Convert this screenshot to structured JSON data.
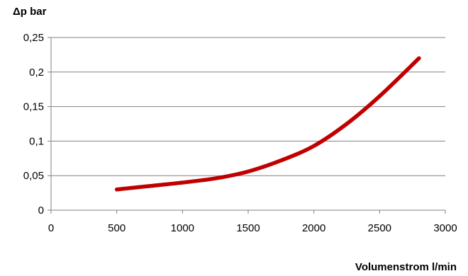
{
  "chart_data": {
    "type": "line",
    "ylabel": "Δp  bar",
    "xlabel": "Volumenstrom l/min",
    "xlim": [
      0,
      3000
    ],
    "ylim": [
      0,
      0.25
    ],
    "x_ticks": [
      0,
      500,
      1000,
      1500,
      2000,
      2500,
      3000
    ],
    "x_tick_labels": [
      "0",
      "500",
      "1000",
      "1500",
      "2000",
      "2500",
      "3000"
    ],
    "y_ticks": [
      0,
      0.05,
      0.1,
      0.15,
      0.2,
      0.25
    ],
    "y_tick_labels": [
      "0",
      "0,05",
      "0,1",
      "0,15",
      "0,2",
      "0,25"
    ],
    "grid": "horizontal",
    "colors": {
      "series": "#C00000",
      "grid": "#808080",
      "axis": "#808080"
    },
    "series": [
      {
        "x": [
          500,
          750,
          1000,
          1250,
          1500,
          1750,
          2000,
          2250,
          2500,
          2800
        ],
        "values": [
          0.03,
          0.035,
          0.04,
          0.046,
          0.056,
          0.072,
          0.093,
          0.125,
          0.165,
          0.22
        ]
      }
    ]
  }
}
